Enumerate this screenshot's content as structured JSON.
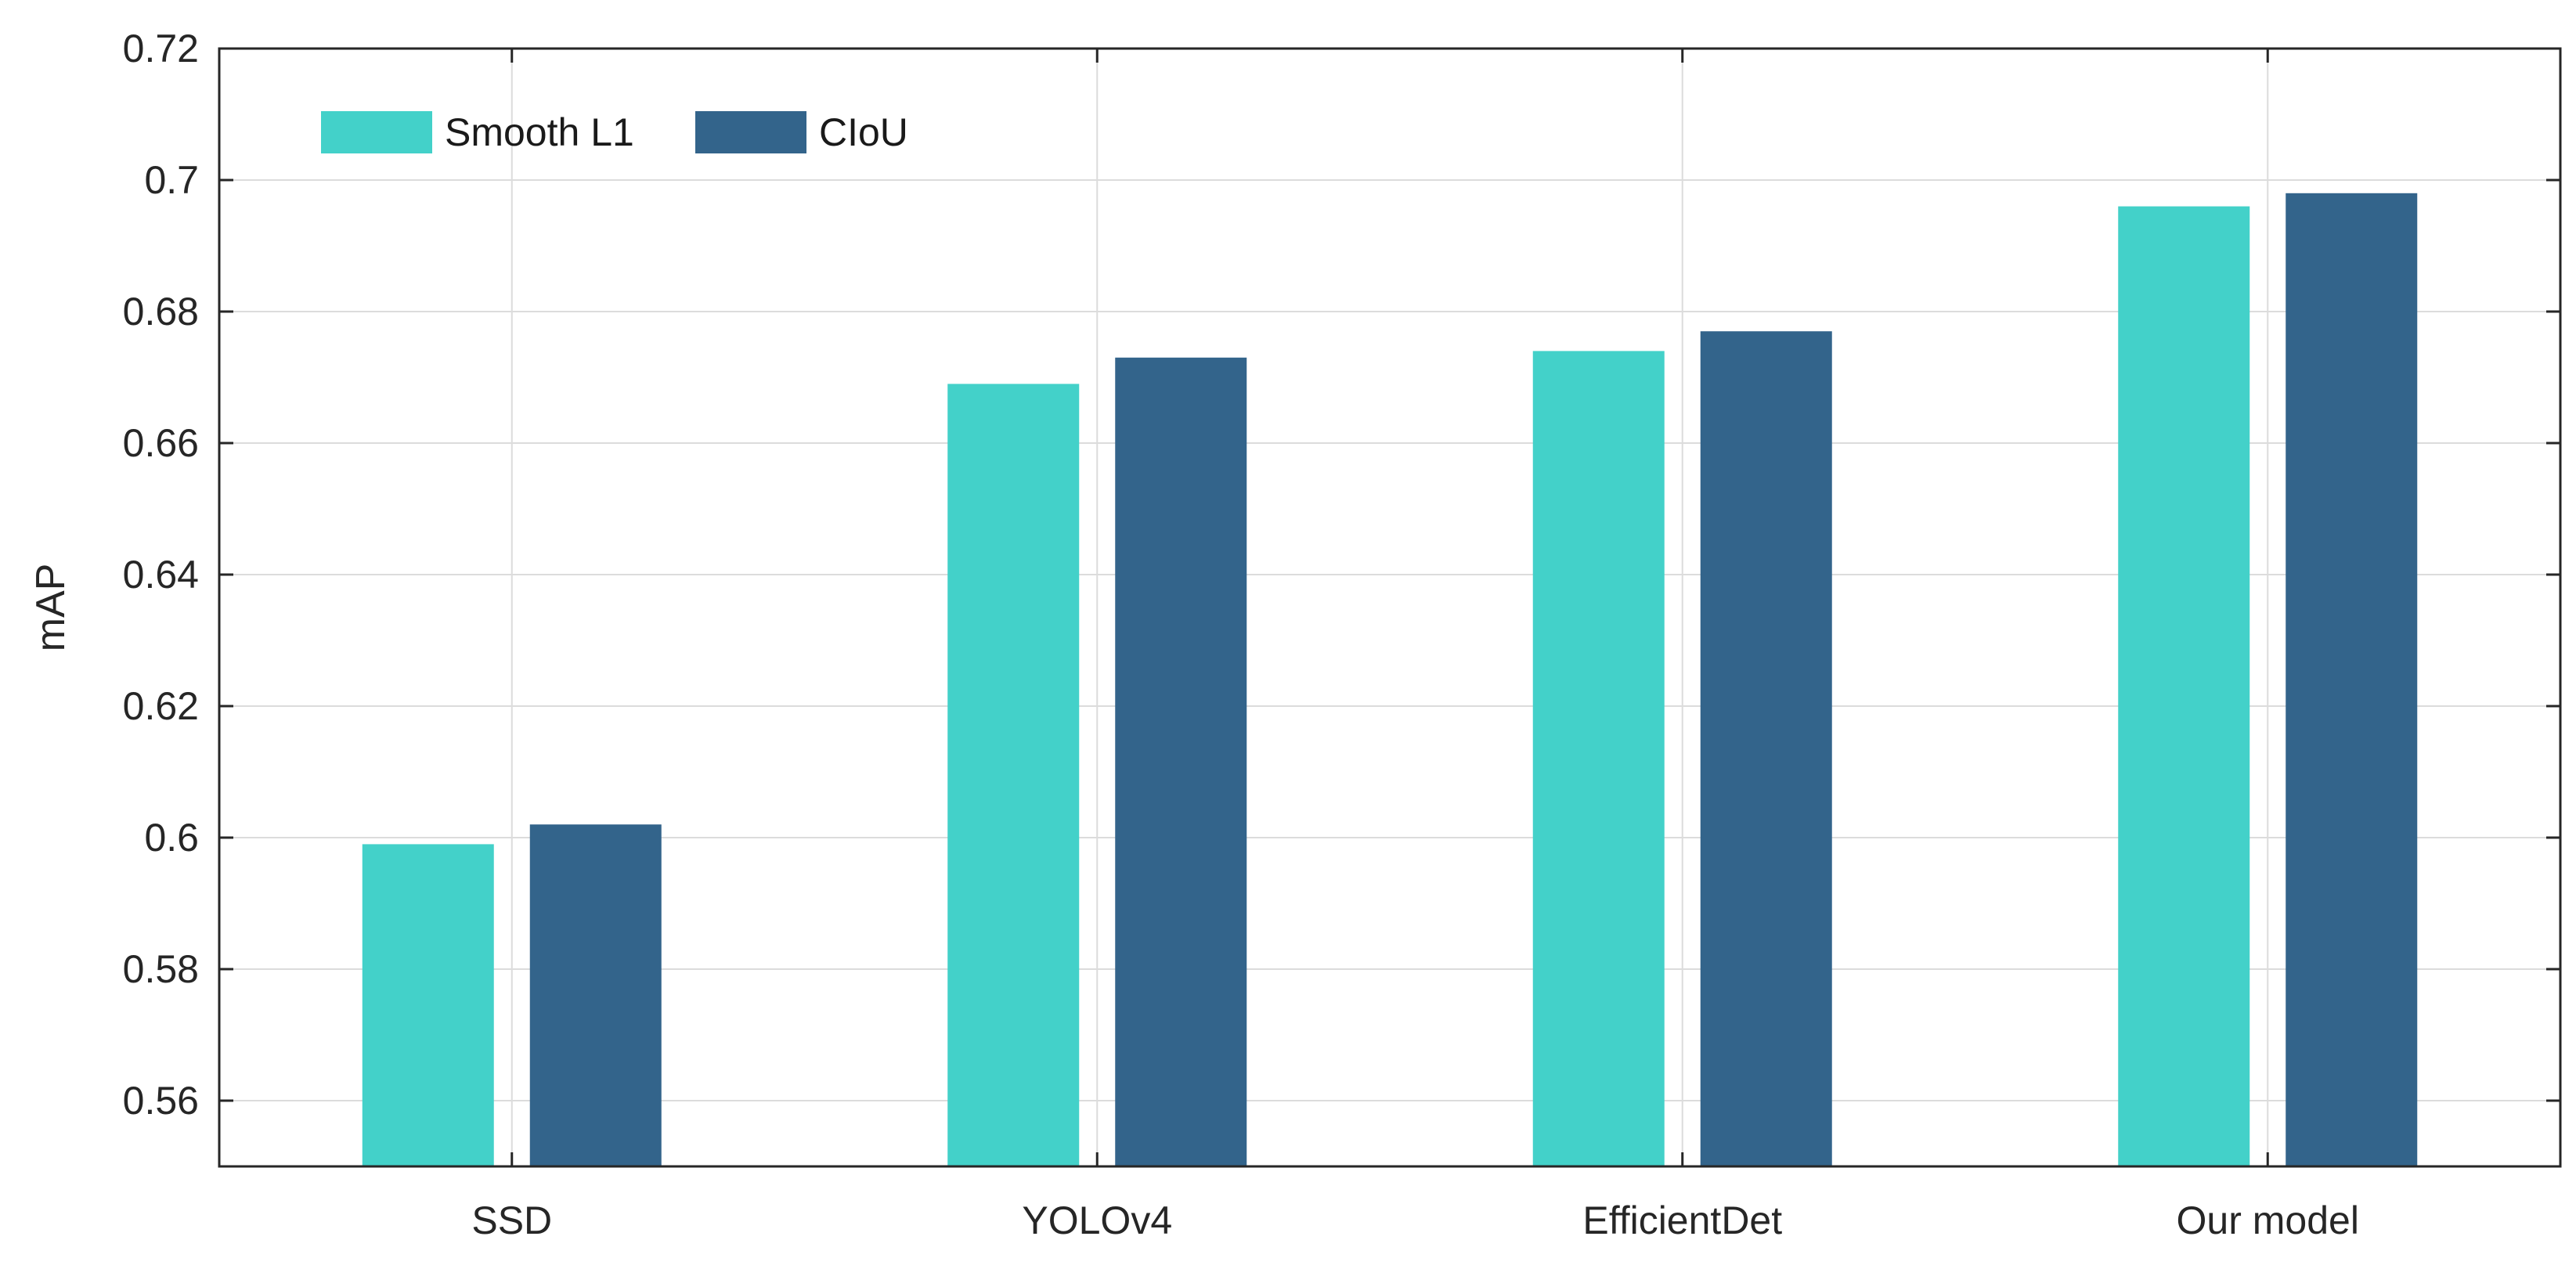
{
  "chart_data": {
    "type": "bar",
    "title": "",
    "xlabel": "",
    "ylabel": "mAP",
    "ylim": [
      0.55,
      0.72
    ],
    "yticks": [
      "0.56",
      "0.58",
      "0.6",
      "0.62",
      "0.64",
      "0.66",
      "0.68",
      "0.7",
      "0.72"
    ],
    "grid": true,
    "legend_position": "top-left",
    "categories": [
      "SSD",
      "YOLOv4",
      "EfficientDet",
      "Our model"
    ],
    "series": [
      {
        "name": "Smooth L1",
        "color": "#43d1c9",
        "values": [
          0.599,
          0.669,
          0.674,
          0.696
        ]
      },
      {
        "name": "CIoU",
        "color": "#33648b",
        "values": [
          0.602,
          0.673,
          0.677,
          0.698
        ]
      }
    ]
  }
}
